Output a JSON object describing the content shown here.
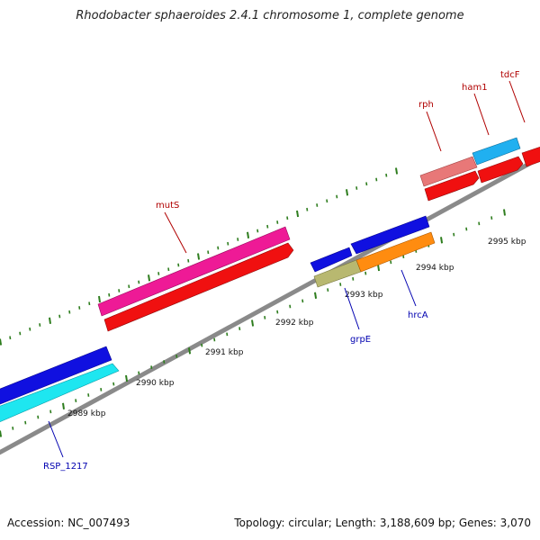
{
  "title": "Rhodobacter sphaeroides 2.4.1 chromosome 1, complete genome",
  "footer": {
    "accession": "Accession: NC_007493",
    "summary": "Topology: circular; Length: 3,188,609 bp; Genes: 3,070"
  },
  "colors": {
    "backbone": "#8a8a8a",
    "tick": "#2e7d1e",
    "label_forward": "#b00000",
    "label_reverse": "#0000b0"
  },
  "scale_labels": [
    {
      "text": "2989 kbp"
    },
    {
      "text": "2990 kbp"
    },
    {
      "text": "2991 kbp"
    },
    {
      "text": "2992 kbp"
    },
    {
      "text": "2993 kbp"
    },
    {
      "text": "2994 kbp"
    },
    {
      "text": "2995 kbp"
    }
  ],
  "genes": [
    {
      "name": "RSP_1217",
      "strand": "reverse",
      "color": "#1ee6f0"
    },
    {
      "name": "",
      "strand": "reverse",
      "color": "#1010e0"
    },
    {
      "name": "mutS",
      "strand": "forward",
      "color": "#ee1a96"
    },
    {
      "name": "",
      "strand": "forward",
      "color": "#f01010"
    },
    {
      "name": "grpE",
      "strand": "reverse",
      "color": "#b8b870"
    },
    {
      "name": "",
      "strand": "reverse",
      "color": "#1010e0"
    },
    {
      "name": "hrcA",
      "strand": "reverse",
      "color": "#ff8c10"
    },
    {
      "name": "",
      "strand": "reverse",
      "color": "#1010e0"
    },
    {
      "name": "rph",
      "strand": "forward",
      "color": "#e87878"
    },
    {
      "name": "",
      "strand": "forward",
      "color": "#f01010"
    },
    {
      "name": "ham1",
      "strand": "forward",
      "color": "#20b0f0"
    },
    {
      "name": "",
      "strand": "forward",
      "color": "#f01010"
    },
    {
      "name": "tdcF",
      "strand": "forward",
      "color": "#f01010"
    }
  ]
}
